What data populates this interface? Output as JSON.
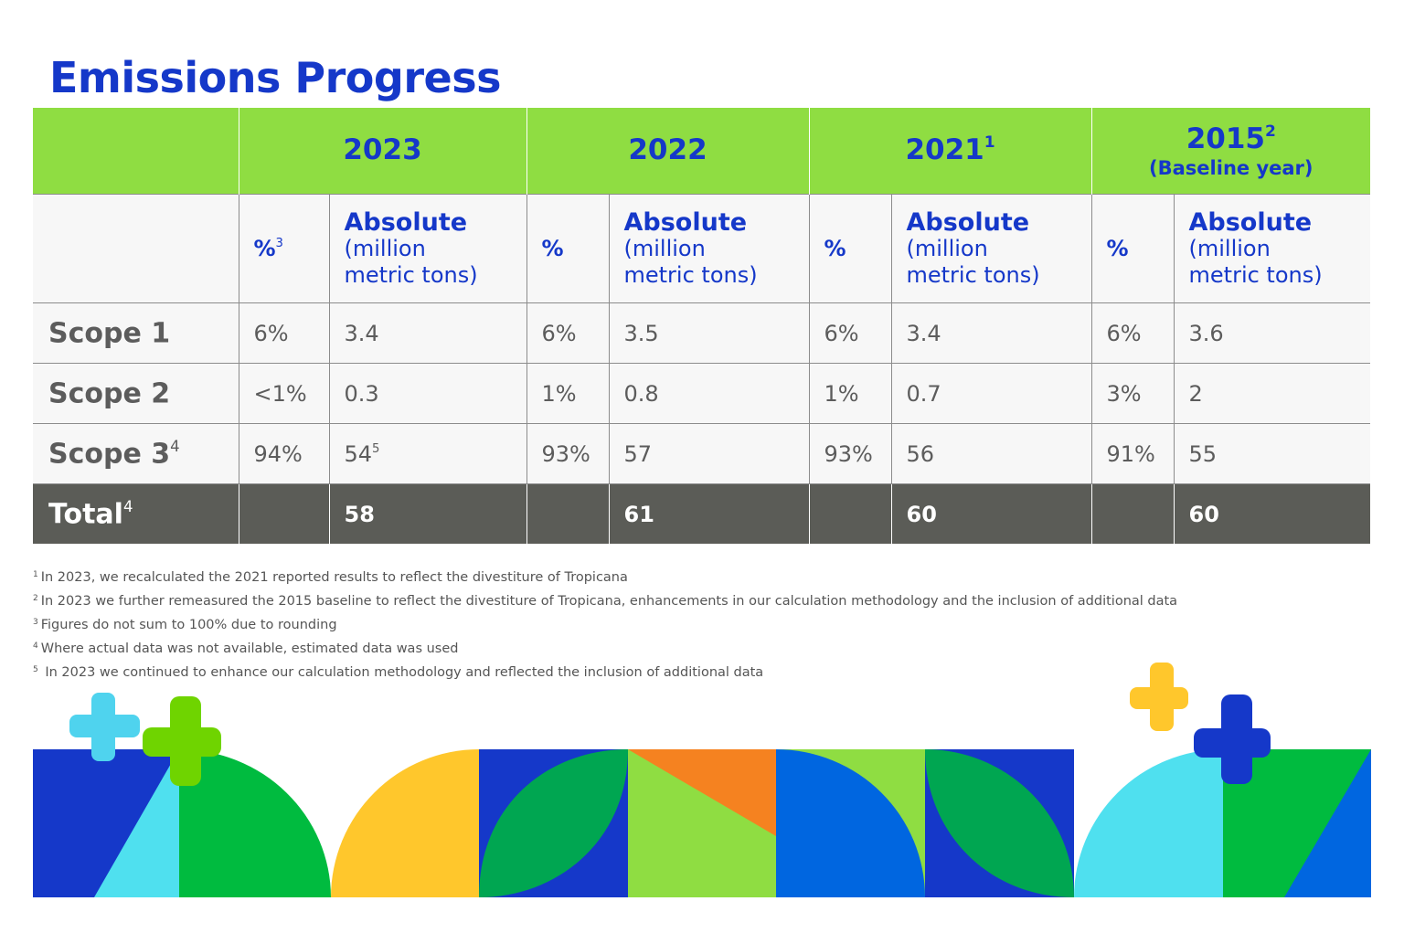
{
  "title": "Emissions Progress",
  "years": [
    {
      "label": "2023",
      "sup": "",
      "note": ""
    },
    {
      "label": "2022",
      "sup": "",
      "note": ""
    },
    {
      "label": "2021",
      "sup": "1",
      "note": ""
    },
    {
      "label": "2015",
      "sup": "2",
      "note": "(Baseline year)"
    }
  ],
  "subheaders": [
    {
      "pct": "%",
      "pct_sup": "3",
      "abs_head": "Absolute",
      "abs_unit1": "(million",
      "abs_unit2": "metric tons)"
    },
    {
      "pct": "%",
      "pct_sup": "",
      "abs_head": "Absolute",
      "abs_unit1": "(million",
      "abs_unit2": "metric tons)"
    },
    {
      "pct": "%",
      "pct_sup": "",
      "abs_head": "Absolute",
      "abs_unit1": "(million",
      "abs_unit2": "metric tons)"
    },
    {
      "pct": "%",
      "pct_sup": "",
      "abs_head": "Absolute",
      "abs_unit1": "(million",
      "abs_unit2": "metric tons)"
    }
  ],
  "rows": [
    {
      "label": "Scope 1",
      "label_sup": "",
      "cells": [
        {
          "pct": "6%",
          "abs": "3.4",
          "abs_sup": ""
        },
        {
          "pct": "6%",
          "abs": "3.5",
          "abs_sup": ""
        },
        {
          "pct": "6%",
          "abs": "3.4",
          "abs_sup": ""
        },
        {
          "pct": "6%",
          "abs": "3.6",
          "abs_sup": ""
        }
      ]
    },
    {
      "label": "Scope 2",
      "label_sup": "",
      "cells": [
        {
          "pct": "<1%",
          "abs": "0.3",
          "abs_sup": ""
        },
        {
          "pct": "1%",
          "abs": "0.8",
          "abs_sup": ""
        },
        {
          "pct": "1%",
          "abs": "0.7",
          "abs_sup": ""
        },
        {
          "pct": "3%",
          "abs": "2",
          "abs_sup": ""
        }
      ]
    },
    {
      "label": "Scope 3",
      "label_sup": "4",
      "cells": [
        {
          "pct": "94%",
          "abs": "54",
          "abs_sup": "5"
        },
        {
          "pct": "93%",
          "abs": "57",
          "abs_sup": ""
        },
        {
          "pct": "93%",
          "abs": "56",
          "abs_sup": ""
        },
        {
          "pct": "91%",
          "abs": "55",
          "abs_sup": ""
        }
      ]
    }
  ],
  "total": {
    "label": "Total",
    "label_sup": "4",
    "values": [
      "58",
      "61",
      "60",
      "60"
    ]
  },
  "footnotes": [
    {
      "num": "1",
      "text": "In 2023, we recalculated the 2021 reported results to reflect the divestiture of Tropicana"
    },
    {
      "num": "2",
      "text": "In 2023 we further remeasured the 2015 baseline to reflect the divestiture of Tropicana, enhancements in our calculation methodology and the inclusion of additional data"
    },
    {
      "num": "3",
      "text": "Figures do not sum to 100% due to rounding"
    },
    {
      "num": "4",
      "text": "Where actual data was not available, estimated data was used"
    },
    {
      "num": "5",
      "text": " In 2023 we continued to enhance our calculation methodology and reflected the inclusion of additional data"
    }
  ],
  "colors": {
    "brand_blue": "#1538c9",
    "header_green": "#8fdd42",
    "total_gray": "#5b5c57",
    "row_bg": "#f7f7f7"
  },
  "decoration_icons": [
    "plus-icon",
    "plus-icon",
    "plus-icon",
    "plus-icon"
  ]
}
